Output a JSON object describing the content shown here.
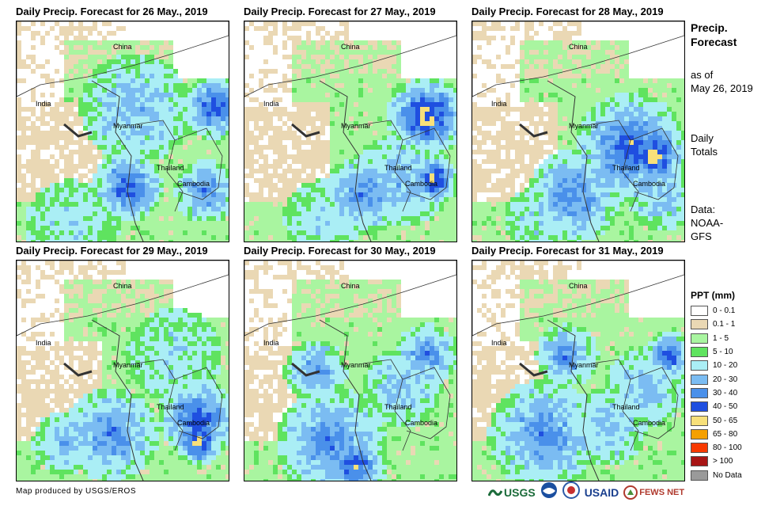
{
  "panels": [
    {
      "title": "Daily Precip. Forecast for 26 May., 2019"
    },
    {
      "title": "Daily Precip. Forecast for 27 May., 2019"
    },
    {
      "title": "Daily Precip. Forecast for 28 May., 2019"
    },
    {
      "title": "Daily Precip. Forecast for 29 May., 2019"
    },
    {
      "title": "Daily Precip. Forecast for 30 May., 2019"
    },
    {
      "title": "Daily Precip. Forecast for 31 May., 2019"
    }
  ],
  "map_labels": {
    "china": "China",
    "india": "India",
    "myanmar": "Myanmar",
    "thailand": "Thailand",
    "cambodia": "Cambodia"
  },
  "side": {
    "title_line1": "Precip.",
    "title_line2": "Forecast",
    "asof_line1": "as of",
    "asof_line2": "May 26, 2019",
    "totals_line1": "Daily",
    "totals_line2": "Totals",
    "data_line1": "Data:",
    "data_line2": "NOAA-",
    "data_line3": "GFS"
  },
  "legend": {
    "title": "PPT (mm)",
    "items": [
      {
        "label": "0 - 0.1",
        "color": "#ffffff"
      },
      {
        "label": "0.1 - 1",
        "color": "#ead8b4"
      },
      {
        "label": "1 - 5",
        "color": "#a9f5a0"
      },
      {
        "label": "5 - 10",
        "color": "#5fe35f"
      },
      {
        "label": "10 - 20",
        "color": "#aaeef5"
      },
      {
        "label": "20 - 30",
        "color": "#7bbcf2"
      },
      {
        "label": "30 - 40",
        "color": "#4a90ea"
      },
      {
        "label": "40 - 50",
        "color": "#1f4fe0"
      },
      {
        "label": "50 - 65",
        "color": "#f7e07a"
      },
      {
        "label": "65 - 80",
        "color": "#f5a000"
      },
      {
        "label": "80 - 100",
        "color": "#f83a00"
      },
      {
        "label": "> 100",
        "color": "#a81515"
      },
      {
        "label": "No Data",
        "color": "#9a9a9a"
      }
    ]
  },
  "footer": {
    "credit": "Map produced by USGS/EROS",
    "logos": [
      "USGS",
      "USAID",
      "FEWS NET"
    ]
  }
}
